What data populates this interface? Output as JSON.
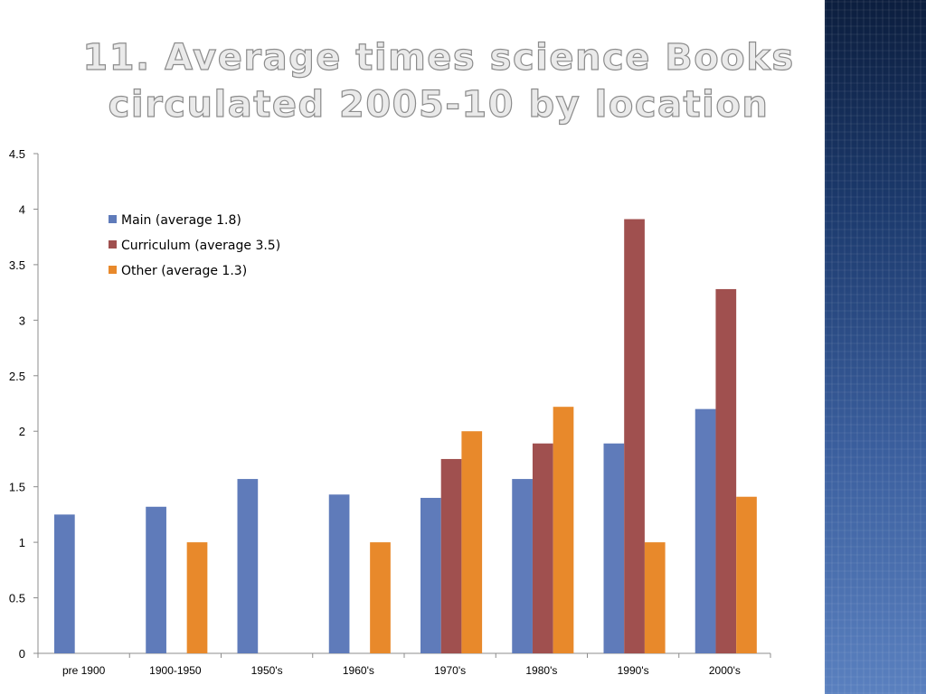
{
  "title": {
    "line1": "11. Average times science Books",
    "line2": "circulated 2005-10 by location"
  },
  "chart_data": {
    "type": "bar",
    "categories": [
      "pre 1900",
      "1900-1950",
      "1950's",
      "1960's",
      "1970's",
      "1980's",
      "1990's",
      "2000's"
    ],
    "series": [
      {
        "name": "Main (average 1.8)",
        "color": "#5f7bba",
        "values": [
          1.25,
          1.32,
          1.57,
          1.43,
          1.4,
          1.57,
          1.89,
          2.2
        ]
      },
      {
        "name": "Curriculum (average 3.5)",
        "color": "#a0504f",
        "values": [
          null,
          null,
          null,
          null,
          1.75,
          1.89,
          3.91,
          3.28
        ]
      },
      {
        "name": "Other (average 1.3)",
        "color": "#e8892b",
        "values": [
          null,
          1.0,
          null,
          1.0,
          2.0,
          2.22,
          1.0,
          1.41
        ]
      }
    ],
    "yticks": [
      "0",
      "0.5",
      "1",
      "1.5",
      "2",
      "2.5",
      "3",
      "3.5",
      "4",
      "4.5"
    ],
    "ylim": [
      0,
      4.5
    ],
    "legend": "top-left",
    "grid": false
  },
  "colors": {
    "axis": "#8c8c8c",
    "panel": "#2b4a82"
  }
}
